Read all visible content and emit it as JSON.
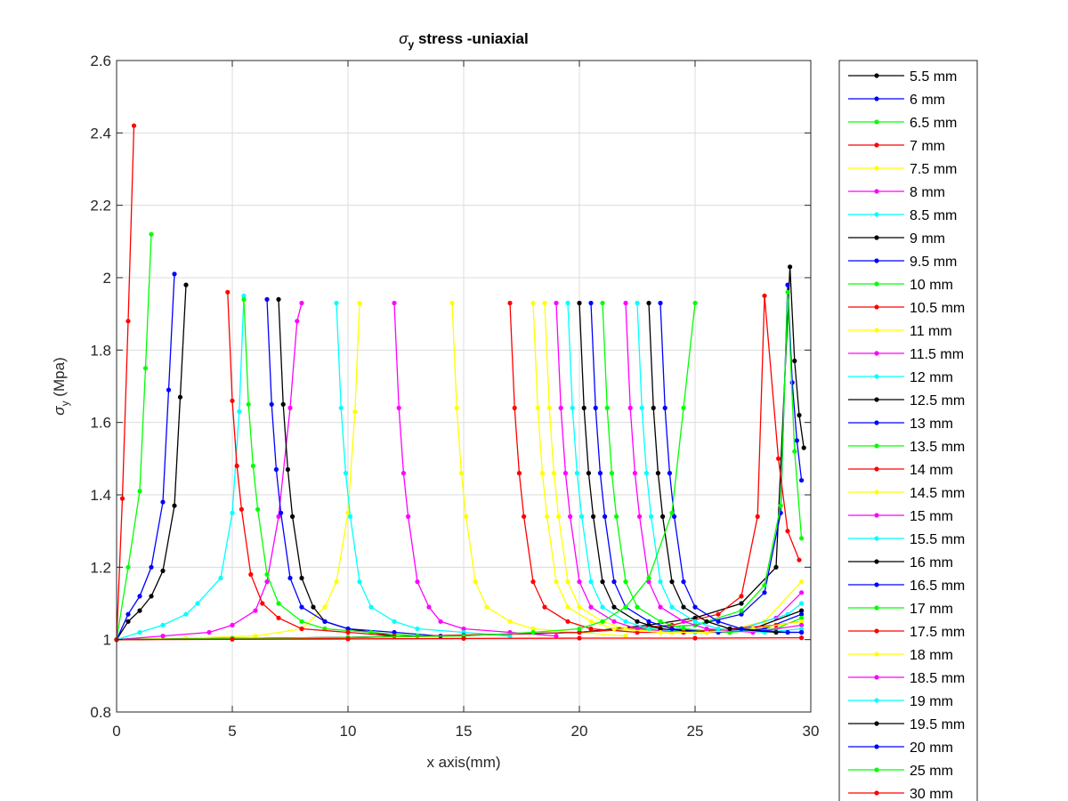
{
  "figure": {
    "background": "#ffffff"
  },
  "chart_data": {
    "type": "line",
    "title_parts": {
      "sigma": "σ",
      "sub": "y",
      "rest": " stress -uniaxial"
    },
    "xlabel": "x axis(mm)",
    "ylabel_parts": {
      "sigma": "σ",
      "sub": "y",
      "rest": " (Mpa)"
    },
    "xlim": [
      0,
      30
    ],
    "ylim": [
      0.8,
      2.6
    ],
    "xticks": [
      0,
      5,
      10,
      15,
      20,
      25,
      30
    ],
    "yticks": [
      0.8,
      1,
      1.2,
      1.4,
      1.6,
      1.8,
      2,
      2.2,
      2.4,
      2.6
    ],
    "ytick_labels": [
      "0.8",
      "1",
      "1.2",
      "1.4",
      "1.6",
      "1.8",
      "2",
      "2.2",
      "2.4",
      "2.6"
    ],
    "grid": true,
    "legend_position": "outside-right",
    "series": [
      {
        "name": "5.5 mm",
        "color": "#000000",
        "x": [
          0,
          0.5,
          1,
          1.5,
          2,
          2.5,
          2.75,
          3
        ],
        "y": [
          1,
          1.05,
          1.08,
          1.12,
          1.19,
          1.37,
          1.67,
          1.98
        ]
      },
      {
        "name": "6 mm",
        "color": "#0000ff",
        "x": [
          0,
          0.5,
          1,
          1.5,
          2,
          2.25,
          2.5
        ],
        "y": [
          1,
          1.07,
          1.12,
          1.2,
          1.38,
          1.69,
          2.01
        ]
      },
      {
        "name": "6.5 mm",
        "color": "#00ff00",
        "x": [
          0,
          0.5,
          1,
          1.25,
          1.5
        ],
        "y": [
          1,
          1.2,
          1.41,
          1.75,
          2.12
        ]
      },
      {
        "name": "7 mm",
        "color": "#ff0000",
        "x": [
          0,
          0.25,
          0.5,
          0.75
        ],
        "y": [
          1,
          1.39,
          1.88,
          2.42
        ]
      },
      {
        "name": "7.5 mm",
        "color": "#ffff00",
        "x": [
          0,
          3,
          6,
          8,
          9,
          9.5,
          10,
          10.3,
          10.5
        ],
        "y": [
          1,
          1.004,
          1.01,
          1.03,
          1.09,
          1.16,
          1.35,
          1.63,
          1.93
        ]
      },
      {
        "name": "8 mm",
        "color": "#ff00ff",
        "x": [
          0,
          2,
          4,
          5,
          6,
          6.5,
          7,
          7.5,
          7.8,
          8
        ],
        "y": [
          1,
          1.01,
          1.02,
          1.04,
          1.08,
          1.16,
          1.34,
          1.64,
          1.88,
          1.93
        ]
      },
      {
        "name": "8.5 mm",
        "color": "#00ffff",
        "x": [
          0,
          1,
          2,
          3,
          3.5,
          4.5,
          5,
          5.3,
          5.5
        ],
        "y": [
          1,
          1.02,
          1.04,
          1.07,
          1.1,
          1.17,
          1.35,
          1.63,
          1.95
        ]
      },
      {
        "name": "9 mm",
        "color": "#000000",
        "x": [
          7,
          7.2,
          7.4,
          7.6,
          8,
          8.5,
          9,
          10,
          11,
          12
        ],
        "y": [
          1.94,
          1.65,
          1.47,
          1.34,
          1.17,
          1.09,
          1.05,
          1.03,
          1.02,
          1.01
        ]
      },
      {
        "name": "9.5 mm",
        "color": "#0000ff",
        "x": [
          6.5,
          6.7,
          6.9,
          7.1,
          7.5,
          8,
          9,
          10,
          12,
          14
        ],
        "y": [
          1.94,
          1.65,
          1.47,
          1.35,
          1.17,
          1.09,
          1.05,
          1.03,
          1.02,
          1.01
        ]
      },
      {
        "name": "10 mm",
        "color": "#00ff00",
        "x": [
          5.5,
          5.7,
          5.9,
          6.1,
          6.5,
          7,
          8,
          9,
          11,
          13
        ],
        "y": [
          1.94,
          1.65,
          1.48,
          1.36,
          1.18,
          1.1,
          1.05,
          1.03,
          1.02,
          1.01
        ]
      },
      {
        "name": "10.5 mm",
        "color": "#ff0000",
        "x": [
          4.8,
          5,
          5.2,
          5.4,
          5.8,
          6.3,
          7,
          8,
          10,
          12
        ],
        "y": [
          1.96,
          1.66,
          1.48,
          1.36,
          1.18,
          1.1,
          1.06,
          1.03,
          1.02,
          1.01
        ]
      },
      {
        "name": "11 mm",
        "color": "#ffff00",
        "x": [
          14.5,
          14.7,
          14.9,
          15.1,
          15.5,
          16,
          17,
          18,
          20,
          22
        ],
        "y": [
          1.93,
          1.64,
          1.46,
          1.34,
          1.16,
          1.09,
          1.05,
          1.03,
          1.02,
          1.01
        ]
      },
      {
        "name": "11.5 mm",
        "color": "#ff00ff",
        "x": [
          12,
          12.2,
          12.4,
          12.6,
          13,
          13.5,
          14,
          15,
          17,
          19
        ],
        "y": [
          1.93,
          1.64,
          1.46,
          1.34,
          1.16,
          1.09,
          1.05,
          1.03,
          1.02,
          1.01
        ]
      },
      {
        "name": "12 mm",
        "color": "#00ffff",
        "x": [
          9.5,
          9.7,
          9.9,
          10.1,
          10.5,
          11,
          12,
          13,
          15,
          17
        ],
        "y": [
          1.93,
          1.64,
          1.46,
          1.34,
          1.16,
          1.09,
          1.05,
          1.03,
          1.02,
          1.01
        ]
      },
      {
        "name": "12.5 mm",
        "color": "#000000",
        "x": [
          0,
          5,
          10,
          15,
          20,
          23,
          25,
          27,
          28.5,
          29.1,
          29.3,
          29.5,
          29.7
        ],
        "y": [
          1,
          1.003,
          1.006,
          1.012,
          1.02,
          1.04,
          1.06,
          1.1,
          1.2,
          2.03,
          1.77,
          1.62,
          1.53
        ]
      },
      {
        "name": "13 mm",
        "color": "#0000ff",
        "x": [
          0,
          5,
          10,
          15,
          20,
          25,
          27,
          28,
          28.7,
          29,
          29.2,
          29.4,
          29.6
        ],
        "y": [
          1,
          1.003,
          1.006,
          1.012,
          1.02,
          1.04,
          1.07,
          1.13,
          1.35,
          1.98,
          1.71,
          1.55,
          1.44
        ]
      },
      {
        "name": "13.5 mm",
        "color": "#00ff00",
        "x": [
          0,
          10,
          20,
          25,
          27,
          28,
          28.7,
          29,
          29.3,
          29.6
        ],
        "y": [
          1,
          1.005,
          1.02,
          1.04,
          1.08,
          1.15,
          1.37,
          1.96,
          1.52,
          1.28
        ]
      },
      {
        "name": "14 mm",
        "color": "#ff0000",
        "x": [
          0,
          10,
          20,
          24,
          26,
          27,
          27.7,
          28,
          28.6,
          29,
          29.5
        ],
        "y": [
          1,
          1.005,
          1.02,
          1.04,
          1.07,
          1.12,
          1.34,
          1.95,
          1.5,
          1.3,
          1.22
        ]
      },
      {
        "name": "14.5 mm",
        "color": "#ffff00",
        "x": [
          18.5,
          18.7,
          18.9,
          19.1,
          19.5,
          20,
          21,
          22,
          24,
          26,
          28,
          29.6
        ],
        "y": [
          1.93,
          1.64,
          1.46,
          1.34,
          1.16,
          1.09,
          1.05,
          1.03,
          1.02,
          1.02,
          1.05,
          1.16
        ]
      },
      {
        "name": "15 mm",
        "color": "#ff00ff",
        "x": [
          19,
          19.2,
          19.4,
          19.6,
          20,
          20.5,
          21.5,
          22.5,
          24.5,
          26.5,
          28.5,
          29.6
        ],
        "y": [
          1.93,
          1.64,
          1.46,
          1.34,
          1.16,
          1.09,
          1.05,
          1.03,
          1.02,
          1.02,
          1.06,
          1.13
        ]
      },
      {
        "name": "15.5 mm",
        "color": "#00ffff",
        "x": [
          19.5,
          19.7,
          19.9,
          20.1,
          20.5,
          21,
          22,
          23,
          25,
          27,
          29,
          29.6
        ],
        "y": [
          1.93,
          1.64,
          1.46,
          1.34,
          1.16,
          1.09,
          1.05,
          1.03,
          1.02,
          1.03,
          1.07,
          1.1
        ]
      },
      {
        "name": "16 mm",
        "color": "#000000",
        "x": [
          20,
          20.2,
          20.4,
          20.6,
          21,
          21.5,
          22.5,
          23.5,
          25.5,
          27.5,
          29.6
        ],
        "y": [
          1.93,
          1.64,
          1.46,
          1.34,
          1.16,
          1.09,
          1.05,
          1.03,
          1.02,
          1.03,
          1.08
        ]
      },
      {
        "name": "16.5 mm",
        "color": "#0000ff",
        "x": [
          20.5,
          20.7,
          20.9,
          21.1,
          21.5,
          22,
          23,
          24,
          26,
          28,
          29.6
        ],
        "y": [
          1.93,
          1.64,
          1.46,
          1.34,
          1.16,
          1.09,
          1.05,
          1.03,
          1.02,
          1.03,
          1.07
        ]
      },
      {
        "name": "17 mm",
        "color": "#00ff00",
        "x": [
          21,
          21.2,
          21.4,
          21.6,
          22,
          22.5,
          23.5,
          24.5,
          26.5,
          28.5,
          29.6
        ],
        "y": [
          1.93,
          1.64,
          1.46,
          1.34,
          1.16,
          1.09,
          1.05,
          1.03,
          1.02,
          1.03,
          1.06
        ]
      },
      {
        "name": "17.5 mm",
        "color": "#ff0000",
        "x": [
          17,
          17.2,
          17.4,
          17.6,
          18,
          18.5,
          19.5,
          20.5,
          22.5,
          24.5,
          26.5,
          28.5,
          29.6
        ],
        "y": [
          1.93,
          1.64,
          1.46,
          1.34,
          1.16,
          1.09,
          1.05,
          1.03,
          1.02,
          1.02,
          1.03,
          1.04,
          1.05
        ]
      },
      {
        "name": "18 mm",
        "color": "#ffff00",
        "x": [
          18,
          18.2,
          18.4,
          18.6,
          19,
          19.5,
          20.5,
          21.5,
          23.5,
          25.5,
          27.5,
          29.6
        ],
        "y": [
          1.93,
          1.64,
          1.46,
          1.34,
          1.16,
          1.09,
          1.05,
          1.03,
          1.02,
          1.02,
          1.03,
          1.05
        ]
      },
      {
        "name": "18.5 mm",
        "color": "#ff00ff",
        "x": [
          22,
          22.2,
          22.4,
          22.6,
          23,
          23.5,
          24.5,
          25.5,
          27.5,
          29.6
        ],
        "y": [
          1.93,
          1.64,
          1.46,
          1.34,
          1.16,
          1.09,
          1.05,
          1.03,
          1.02,
          1.04
        ]
      },
      {
        "name": "19 mm",
        "color": "#00ffff",
        "x": [
          22.5,
          22.7,
          22.9,
          23.1,
          23.5,
          24,
          25,
          26,
          28,
          29.6
        ],
        "y": [
          1.93,
          1.64,
          1.46,
          1.34,
          1.16,
          1.09,
          1.05,
          1.03,
          1.02,
          1.03
        ]
      },
      {
        "name": "19.5 mm",
        "color": "#000000",
        "x": [
          23,
          23.2,
          23.4,
          23.6,
          24,
          24.5,
          25.5,
          26.5,
          28.5,
          29.6
        ],
        "y": [
          1.93,
          1.64,
          1.46,
          1.34,
          1.16,
          1.09,
          1.05,
          1.03,
          1.02,
          1.02
        ]
      },
      {
        "name": "20 mm",
        "color": "#0000ff",
        "x": [
          23.5,
          23.7,
          23.9,
          24.1,
          24.5,
          25,
          26,
          27,
          29,
          29.6
        ],
        "y": [
          1.93,
          1.64,
          1.46,
          1.34,
          1.16,
          1.09,
          1.05,
          1.03,
          1.02,
          1.02
        ]
      },
      {
        "name": "25 mm",
        "color": "#00ff00",
        "x": [
          0,
          5,
          10,
          15,
          18,
          20,
          21,
          22,
          23,
          24,
          24.5,
          25
        ],
        "y": [
          1,
          1.003,
          1.006,
          1.01,
          1.02,
          1.03,
          1.05,
          1.09,
          1.17,
          1.35,
          1.64,
          1.93
        ]
      },
      {
        "name": "30 mm",
        "color": "#ff0000",
        "x": [
          0,
          5,
          10,
          15,
          20,
          25,
          29.6
        ],
        "y": [
          1,
          1.001,
          1.002,
          1.003,
          1.004,
          1.004,
          1.005
        ]
      }
    ]
  }
}
